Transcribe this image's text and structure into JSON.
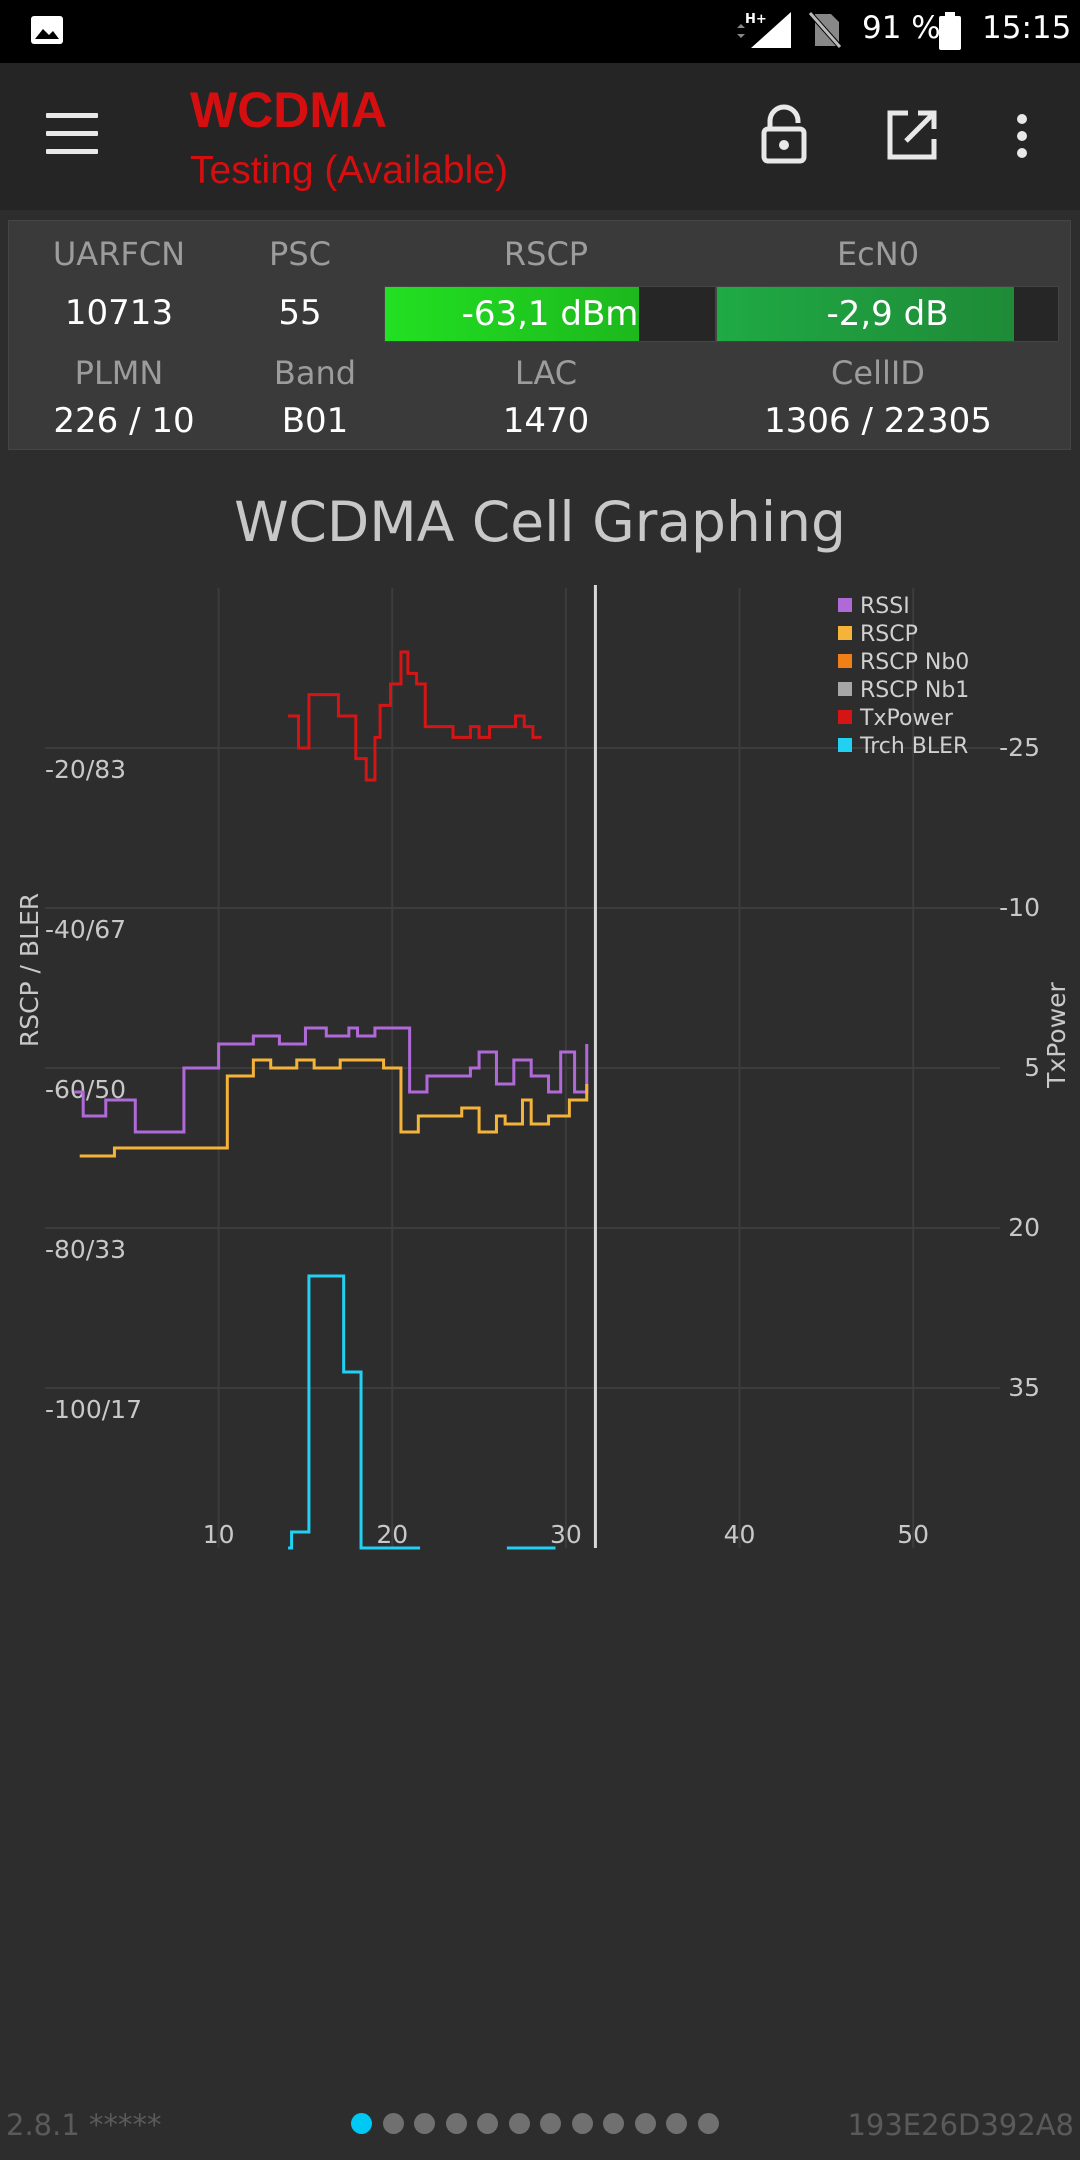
{
  "status_bar": {
    "network_type": "H+",
    "battery_percent": "91 %",
    "time": "15:15",
    "icons": [
      "gallery-icon",
      "signal-icon",
      "no-sim-icon",
      "battery-icon"
    ]
  },
  "toolbar": {
    "title": "WCDMA",
    "subtitle": "Testing (Available)",
    "accent_color": "#d50f0f",
    "actions": [
      "menu-icon",
      "lock-icon",
      "open-external-icon",
      "more-vert-icon"
    ]
  },
  "cell_info": {
    "uarfcn": {
      "label": "UARFCN",
      "value": "10713"
    },
    "psc": {
      "label": "PSC",
      "value": "55"
    },
    "rscp": {
      "label": "RSCP",
      "value": "-63,1 dBm",
      "fill_fraction": 0.77
    },
    "ecno": {
      "label": "EcN0",
      "value": "-2,9 dB",
      "fill_fraction": 0.87
    },
    "plmn": {
      "label": "PLMN",
      "value": "226 / 10"
    },
    "band": {
      "label": "Band",
      "value": "B01"
    },
    "lac": {
      "label": "LAC",
      "value": "1470"
    },
    "cellid": {
      "label": "CellID",
      "value": "1306 / 22305"
    }
  },
  "chart_data": {
    "type": "line",
    "title": "WCDMA Cell Graphing",
    "ylabel_left": "RSCP / BLER",
    "ylabel_right": "TxPower",
    "x_ticks": [
      "10",
      "20",
      "30",
      "40",
      "50"
    ],
    "left_ticks": [
      "-20/83",
      "-40/67",
      "-60/50",
      "-80/33",
      "-100/17"
    ],
    "right_ticks": [
      "-25",
      "-10",
      "5",
      "20",
      "35"
    ],
    "xlim": [
      0,
      55
    ],
    "ylim_left": [
      -120,
      0
    ],
    "ylim_right": [
      50,
      -40
    ],
    "cursor_x": 31.7,
    "grid": true,
    "legend_position": "top-right",
    "legend": [
      {
        "name": "RSSI",
        "color": "#b06ad8"
      },
      {
        "name": "RSCP",
        "color": "#f4b43a"
      },
      {
        "name": "RSCP Nb0",
        "color": "#f07f18"
      },
      {
        "name": "RSCP Nb1",
        "color": "#a6a6a6"
      },
      {
        "name": "TxPower",
        "color": "#d51515"
      },
      {
        "name": "Trch BLER",
        "color": "#22d0f2"
      }
    ],
    "series": [
      {
        "name": "RSSI",
        "axis": "left",
        "color": "#b06ad8",
        "x": [
          1.7,
          2.2,
          3.5,
          5.2,
          7.2,
          8.0,
          10.0,
          12.0,
          13.5,
          15.0,
          16.2,
          17.5,
          18.0,
          19.0,
          19.8,
          21.0,
          22.0,
          23.0,
          24.5,
          25.0,
          26.0,
          27.0,
          28.0,
          29.0,
          29.7,
          30.5,
          31.2
        ],
        "y": [
          -63,
          -66,
          -64,
          -68,
          -68,
          -60,
          -57,
          -56,
          -57,
          -55,
          -56,
          -55,
          -56,
          -55,
          -55,
          -63,
          -61,
          -61,
          -60,
          -58,
          -62,
          -59,
          -61,
          -63,
          -58,
          -63,
          -57
        ]
      },
      {
        "name": "RSCP",
        "axis": "left",
        "color": "#f4b43a",
        "x": [
          2.0,
          4.0,
          7.0,
          10.5,
          12.0,
          13.0,
          14.5,
          15.5,
          17.0,
          18.5,
          19.5,
          20.5,
          21.5,
          23.0,
          24.0,
          25.0,
          26.0,
          26.5,
          27.5,
          28.0,
          29.0,
          30.2,
          31.2
        ],
        "y": [
          -71,
          -70,
          -70,
          -61,
          -59,
          -60,
          -59,
          -60,
          -59,
          -59,
          -60,
          -68,
          -66,
          -66,
          -65,
          -68,
          -66,
          -67,
          -64,
          -67,
          -66,
          -64,
          -62
        ]
      },
      {
        "name": "TxPower",
        "axis": "right",
        "color": "#d51515",
        "x": [
          14.0,
          14.6,
          15.2,
          16.3,
          16.9,
          17.9,
          18.5,
          19.0,
          19.3,
          19.9,
          20.5,
          20.9,
          21.4,
          21.9,
          22.9,
          23.5,
          24.5,
          25.0,
          25.6,
          26.1,
          27.1,
          27.6,
          28.1,
          28.6
        ],
        "y": [
          -28,
          -25,
          -30,
          -30,
          -28,
          -24,
          -22,
          -26,
          -29,
          -31,
          -34,
          -32,
          -31,
          -27,
          -27,
          -26,
          -27,
          -26,
          -27,
          -27,
          -28,
          -27,
          -26,
          -26
        ]
      },
      {
        "name": "Trch BLER",
        "axis": "left",
        "color": "#22d0f2",
        "x": [
          14.0,
          14.2,
          15.2,
          16.2,
          17.2,
          18.2,
          21.6
        ],
        "y": [
          -120,
          -118,
          -86,
          -86,
          -98,
          -120,
          -120
        ],
        "x2": [
          26.6,
          29.4
        ],
        "y2": [
          -120,
          -120
        ]
      }
    ]
  },
  "footer": {
    "version": "2.8.1 *****",
    "device_id": "193E26D392A8",
    "page_count": 12,
    "active_page": 0
  }
}
